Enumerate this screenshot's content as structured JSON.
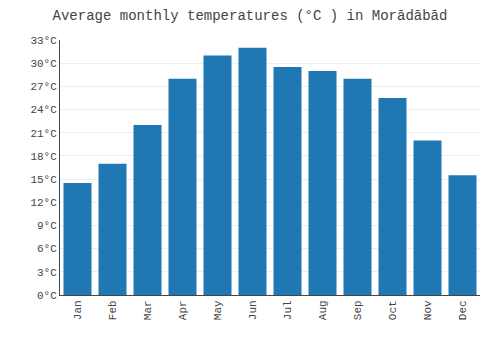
{
  "chart_data": {
    "type": "bar",
    "title": "Average monthly temperatures (°C ) in Morādābād",
    "categories": [
      "Jan",
      "Feb",
      "Mar",
      "Apr",
      "May",
      "Jun",
      "Jul",
      "Aug",
      "Sep",
      "Oct",
      "Nov",
      "Dec"
    ],
    "values": [
      14.5,
      17.0,
      22.0,
      28.0,
      31.0,
      32.0,
      29.5,
      29.0,
      28.0,
      25.5,
      20.0,
      15.5
    ],
    "ylim": [
      0,
      33
    ],
    "yticks": [
      {
        "value": 0,
        "label": "0°C"
      },
      {
        "value": 3,
        "label": "3°C"
      },
      {
        "value": 6,
        "label": "6°C"
      },
      {
        "value": 9,
        "label": "9°C"
      },
      {
        "value": 12,
        "label": "12°C"
      },
      {
        "value": 15,
        "label": "15°C"
      },
      {
        "value": 18,
        "label": "18°C"
      },
      {
        "value": 21,
        "label": "21°C"
      },
      {
        "value": 24,
        "label": "24°C"
      },
      {
        "value": 27,
        "label": "27°C"
      },
      {
        "value": 30,
        "label": "30°C"
      },
      {
        "value": 33,
        "label": "33°C"
      }
    ],
    "grid": true
  }
}
